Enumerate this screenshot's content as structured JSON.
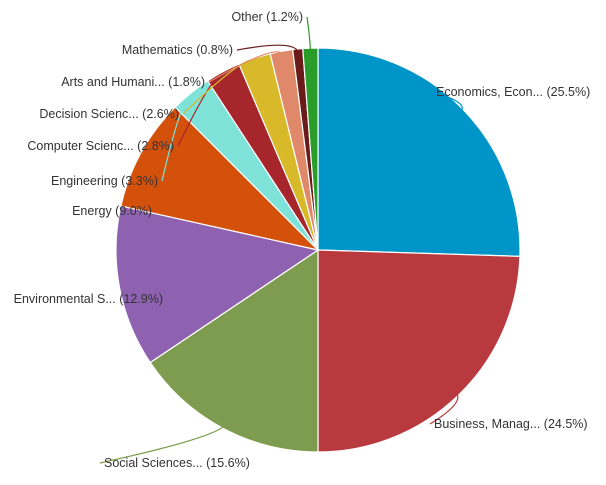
{
  "chart_data": {
    "type": "pie",
    "title": "",
    "legend": "none",
    "slices": [
      {
        "label": "Economics, Econ...",
        "value": 25.5,
        "display": "Economics, Econ... (25.5%)",
        "color": "#0095c8"
      },
      {
        "label": "Business, Manag...",
        "value": 24.5,
        "display": "Business, Manag... (24.5%)",
        "color": "#b83a3f"
      },
      {
        "label": "Social Sciences...",
        "value": 15.6,
        "display": "Social Sciences... (15.6%)",
        "color": "#7d9c4f"
      },
      {
        "label": "Environmental S...",
        "value": 12.9,
        "display": "Environmental S... (12.9%)",
        "color": "#8e62b1"
      },
      {
        "label": "Energy",
        "value": 9.0,
        "display": "Energy (9.0%)",
        "color": "#d4510c"
      },
      {
        "label": "Engineering",
        "value": 3.3,
        "display": "Engineering (3.3%)",
        "color": "#7ee2d8"
      },
      {
        "label": "Computer Scienc...",
        "value": 2.8,
        "display": "Computer Scienc... (2.8%)",
        "color": "#a6262c"
      },
      {
        "label": "Decision Scienc...",
        "value": 2.6,
        "display": "Decision Scienc... (2.6%)",
        "color": "#d8b92a"
      },
      {
        "label": "Arts and Humani...",
        "value": 1.8,
        "display": "Arts and Humani... (1.8%)",
        "color": "#e0896a"
      },
      {
        "label": "Mathematics",
        "value": 0.8,
        "display": "Mathematics (0.8%)",
        "color": "#6b1a1a"
      },
      {
        "label": "Other",
        "value": 1.2,
        "display": "Other (1.2%)",
        "color": "#2a9c2a"
      }
    ]
  }
}
